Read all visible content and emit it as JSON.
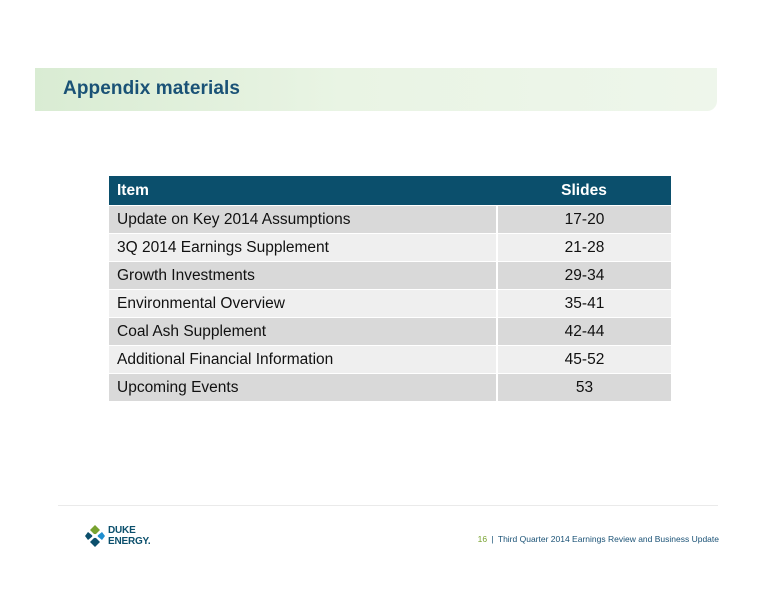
{
  "header": {
    "title": "Appendix materials"
  },
  "table": {
    "headers": [
      "Item",
      "Slides"
    ],
    "rows": [
      {
        "item": "Update on Key 2014 Assumptions",
        "slides": "17-20"
      },
      {
        "item": "3Q 2014 Earnings Supplement",
        "slides": "21-28"
      },
      {
        "item": "Growth Investments",
        "slides": "29-34"
      },
      {
        "item": "Environmental Overview",
        "slides": "35-41"
      },
      {
        "item": "Coal Ash Supplement",
        "slides": "42-44"
      },
      {
        "item": "Additional Financial Information",
        "slides": "45-52"
      },
      {
        "item": "Upcoming Events",
        "slides": "53"
      }
    ]
  },
  "footer": {
    "logo_line1": "DUKE",
    "logo_line2": "ENERGY.",
    "page_number": "16",
    "separator": "|",
    "doc_title": "Third Quarter 2014 Earnings Review and Business Update"
  },
  "colors": {
    "header_fill": "#0b4f6c",
    "title_text": "#1a5276",
    "title_band": "#e3f1dd",
    "row_dark": "#d9d9d9",
    "row_light": "#efefef",
    "logo_green": "#78a22f"
  },
  "icons": {
    "logo": "duke-energy-logo-icon"
  }
}
